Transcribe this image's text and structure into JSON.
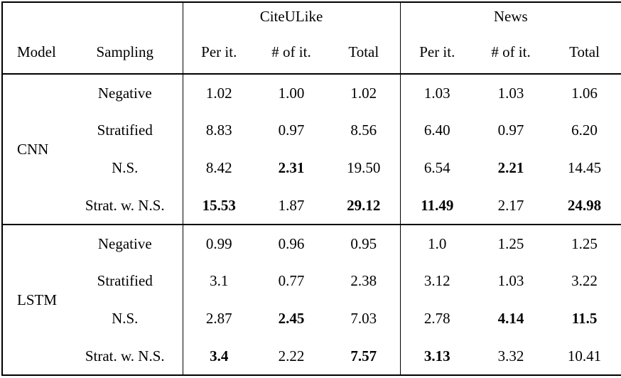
{
  "table": {
    "header": {
      "model_label": "Model",
      "sampling_label": "Sampling",
      "datasets": [
        {
          "name": "CiteULike",
          "columns": [
            "Per it.",
            "# of it.",
            "Total"
          ]
        },
        {
          "name": "News",
          "columns": [
            "Per it.",
            "# of it.",
            "Total"
          ]
        }
      ]
    },
    "groups": [
      {
        "model": "CNN",
        "rows": [
          {
            "sampling": "Negative",
            "cells": [
              {
                "v": "1.02"
              },
              {
                "v": "1.00"
              },
              {
                "v": "1.02"
              },
              {
                "v": "1.03"
              },
              {
                "v": "1.03"
              },
              {
                "v": "1.06"
              }
            ]
          },
          {
            "sampling": "Stratified",
            "cells": [
              {
                "v": "8.83"
              },
              {
                "v": "0.97"
              },
              {
                "v": "8.56"
              },
              {
                "v": "6.40"
              },
              {
                "v": "0.97"
              },
              {
                "v": "6.20"
              }
            ]
          },
          {
            "sampling": "N.S.",
            "cells": [
              {
                "v": "8.42"
              },
              {
                "v": "2.31",
                "bold": true
              },
              {
                "v": "19.50"
              },
              {
                "v": "6.54"
              },
              {
                "v": "2.21",
                "bold": true
              },
              {
                "v": "14.45"
              }
            ]
          },
          {
            "sampling": "Strat. w. N.S.",
            "cells": [
              {
                "v": "15.53",
                "bold": true
              },
              {
                "v": "1.87"
              },
              {
                "v": "29.12",
                "bold": true
              },
              {
                "v": "11.49",
                "bold": true
              },
              {
                "v": "2.17"
              },
              {
                "v": "24.98",
                "bold": true
              }
            ]
          }
        ]
      },
      {
        "model": "LSTM",
        "rows": [
          {
            "sampling": "Negative",
            "cells": [
              {
                "v": "0.99"
              },
              {
                "v": "0.96"
              },
              {
                "v": "0.95"
              },
              {
                "v": "1.0"
              },
              {
                "v": "1.25"
              },
              {
                "v": "1.25"
              }
            ]
          },
          {
            "sampling": "Stratified",
            "cells": [
              {
                "v": "3.1"
              },
              {
                "v": "0.77"
              },
              {
                "v": "2.38"
              },
              {
                "v": "3.12"
              },
              {
                "v": "1.03"
              },
              {
                "v": "3.22"
              }
            ]
          },
          {
            "sampling": "N.S.",
            "cells": [
              {
                "v": "2.87"
              },
              {
                "v": "2.45",
                "bold": true
              },
              {
                "v": "7.03"
              },
              {
                "v": "2.78"
              },
              {
                "v": "4.14",
                "bold": true
              },
              {
                "v": "11.5",
                "bold": true
              }
            ]
          },
          {
            "sampling": "Strat. w. N.S.",
            "cells": [
              {
                "v": "3.4",
                "bold": true
              },
              {
                "v": "2.22"
              },
              {
                "v": "7.57",
                "bold": true
              },
              {
                "v": "3.13",
                "bold": true
              },
              {
                "v": "3.32"
              },
              {
                "v": "10.41"
              }
            ]
          }
        ]
      }
    ]
  }
}
